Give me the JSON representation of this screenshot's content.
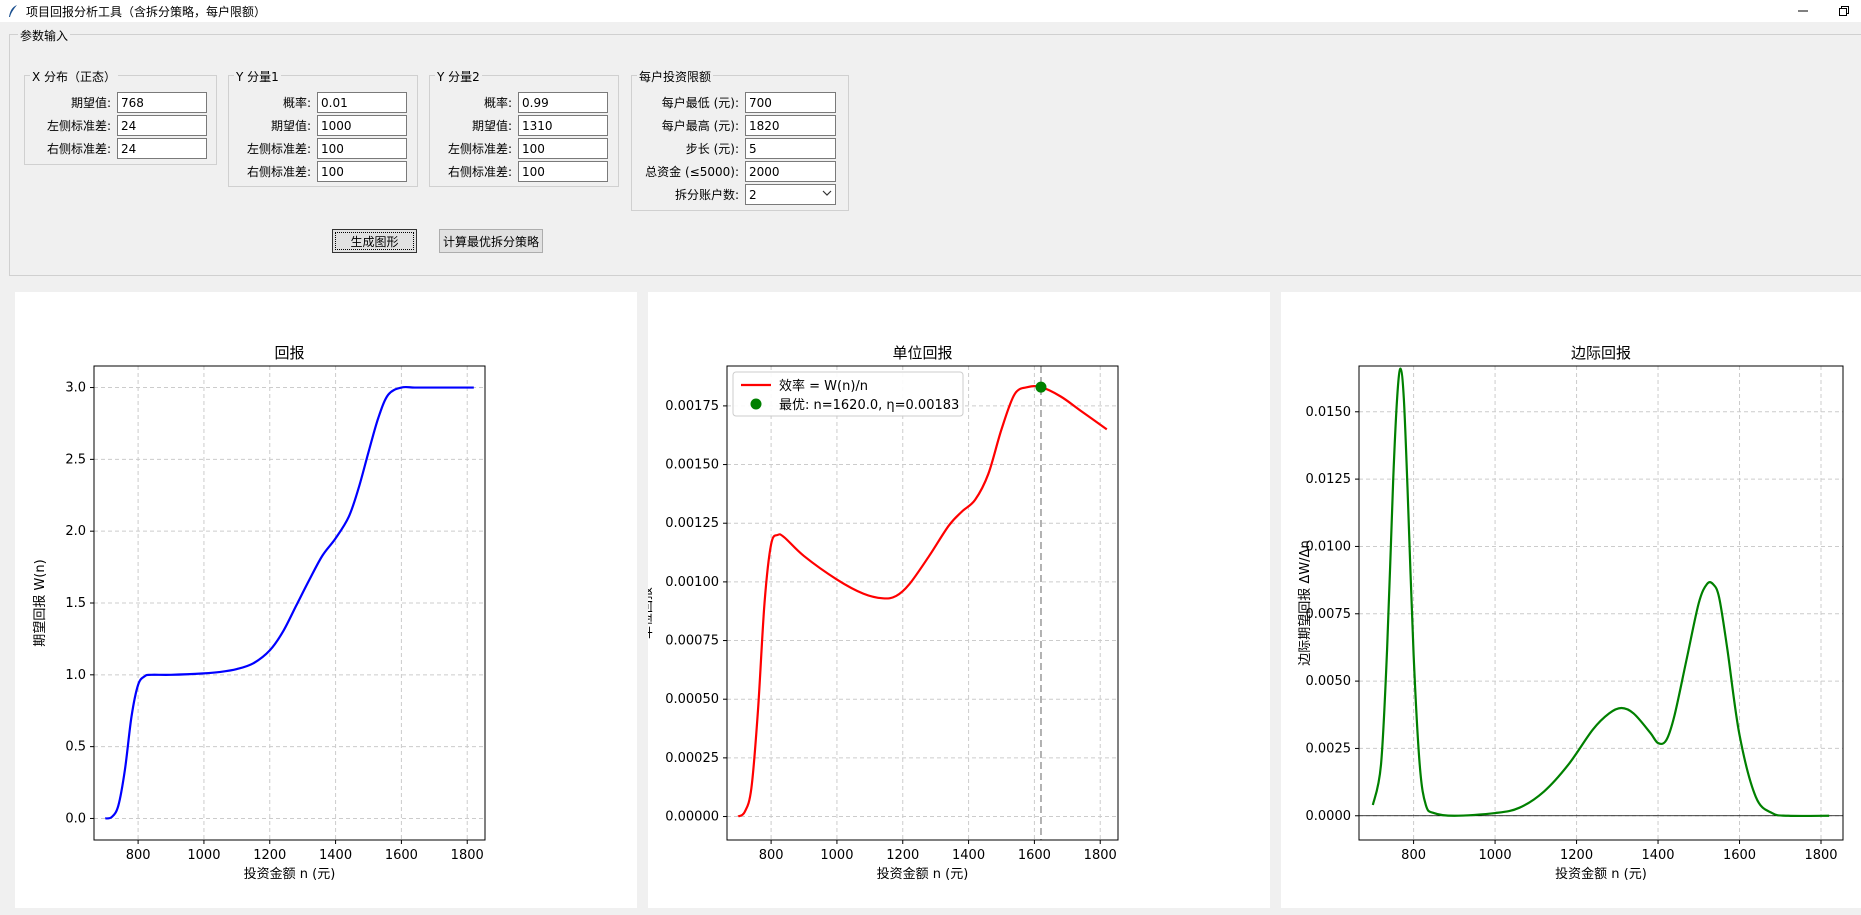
{
  "window": {
    "title": "项目回报分析工具（含拆分策略，每户限额）",
    "minimize_icon": "minimize-icon",
    "restore_icon": "restore-icon"
  },
  "params": {
    "legend": "参数输入",
    "x_dist": {
      "legend": "X 分布（正态）",
      "fields": [
        {
          "label": "期望值:",
          "value": "768"
        },
        {
          "label": "左侧标准差:",
          "value": "24"
        },
        {
          "label": "右侧标准差:",
          "value": "24"
        }
      ]
    },
    "y1": {
      "legend": "Y 分量1",
      "fields": [
        {
          "label": "概率:",
          "value": "0.01"
        },
        {
          "label": "期望值:",
          "value": "1000"
        },
        {
          "label": "左侧标准差:",
          "value": "100"
        },
        {
          "label": "右侧标准差:",
          "value": "100"
        }
      ]
    },
    "y2": {
      "legend": "Y 分量2",
      "fields": [
        {
          "label": "概率:",
          "value": "0.99"
        },
        {
          "label": "期望值:",
          "value": "1310"
        },
        {
          "label": "左侧标准差:",
          "value": "100"
        },
        {
          "label": "右侧标准差:",
          "value": "100"
        }
      ]
    },
    "limits": {
      "legend": "每户投资限额",
      "fields": [
        {
          "label": "每户最低 (元):",
          "value": "700"
        },
        {
          "label": "每户最高 (元):",
          "value": "1820"
        },
        {
          "label": "步长 (元):",
          "value": "5"
        },
        {
          "label": "总资金 (≤5000):",
          "value": "2000"
        }
      ],
      "split": {
        "label": "拆分账户数:",
        "value": "2"
      }
    }
  },
  "buttons": {
    "generate": "生成图形",
    "optimize": "计算最优拆分策略"
  },
  "chart_data": [
    {
      "type": "line",
      "title": "回报",
      "xlabel": "投资金额 n (元)",
      "ylabel": "期望回报 W(n)",
      "xlim": [
        666,
        1854
      ],
      "ylim": [
        -0.15,
        3.15
      ],
      "xticks": [
        800,
        1000,
        1200,
        1400,
        1600,
        1800
      ],
      "yticks": [
        0.0,
        0.5,
        1.0,
        1.5,
        2.0,
        2.5,
        3.0
      ],
      "ytick_labels": [
        "0.0",
        "0.5",
        "1.0",
        "1.5",
        "2.0",
        "2.5",
        "3.0"
      ],
      "grid": true,
      "color": "#0000ff",
      "series": [
        {
          "x": [
            700,
            720,
            740,
            760,
            780,
            800,
            820,
            840,
            900,
            1000,
            1050,
            1100,
            1150,
            1200,
            1240,
            1280,
            1320,
            1360,
            1400,
            1440,
            1470,
            1500,
            1530,
            1560,
            1600,
            1640,
            1700,
            1820
          ],
          "values": [
            0.0,
            0.01,
            0.09,
            0.34,
            0.71,
            0.93,
            0.99,
            1.0,
            1.0,
            1.01,
            1.02,
            1.04,
            1.08,
            1.17,
            1.3,
            1.48,
            1.66,
            1.83,
            1.95,
            2.1,
            2.3,
            2.55,
            2.79,
            2.95,
            3.0,
            3.0,
            3.0,
            3.0
          ]
        }
      ]
    },
    {
      "type": "line",
      "title": "单位回报",
      "xlabel": "投资金额 n (元)",
      "ylabel": "单位回报",
      "xlim": [
        666,
        1854
      ],
      "ylim": [
        -0.0001,
        0.00192
      ],
      "xticks": [
        800,
        1000,
        1200,
        1400,
        1600,
        1800
      ],
      "yticks": [
        0,
        0.00025,
        0.0005,
        0.00075,
        0.001,
        0.00125,
        0.0015,
        0.00175
      ],
      "ytick_labels": [
        "0.00000",
        "0.00025",
        "0.00050",
        "0.00075",
        "0.00100",
        "0.00125",
        "0.00150",
        "0.00175"
      ],
      "grid": true,
      "color": "#ff0000",
      "legend_position": "top-left",
      "series": [
        {
          "name": "效率 = W(n)/n",
          "x": [
            700,
            720,
            740,
            760,
            780,
            800,
            820,
            840,
            900,
            1000,
            1080,
            1140,
            1180,
            1220,
            1280,
            1340,
            1380,
            1420,
            1460,
            1500,
            1540,
            1580,
            1620,
            1680,
            1740,
            1820
          ],
          "values": [
            0.0,
            2e-05,
            0.00012,
            0.00045,
            0.00091,
            0.00116,
            0.0012,
            0.00119,
            0.00111,
            0.00101,
            0.00095,
            0.00093,
            0.00094,
            0.00099,
            0.00111,
            0.00124,
            0.0013,
            0.00135,
            0.00146,
            0.00165,
            0.0018,
            0.00183,
            0.00183,
            0.00179,
            0.00173,
            0.00165
          ]
        }
      ],
      "marker": {
        "name": "最优: n=1620.0, η=0.00183",
        "x": 1620,
        "y": 0.00183,
        "color": "#008000"
      },
      "vline_x": 1620
    },
    {
      "type": "line",
      "title": "边际回报",
      "xlabel": "投资金额 n (元)",
      "ylabel": "边际期望回报 ΔW/Δn",
      "xlim": [
        666,
        1854
      ],
      "ylim": [
        -0.0009,
        0.0167
      ],
      "xticks": [
        800,
        1000,
        1200,
        1400,
        1600,
        1800
      ],
      "yticks": [
        0,
        0.0025,
        0.005,
        0.0075,
        0.01,
        0.0125,
        0.015
      ],
      "ytick_labels": [
        "0.0000",
        "0.0025",
        "0.0050",
        "0.0075",
        "0.0100",
        "0.0125",
        "0.0150"
      ],
      "grid": true,
      "color": "#008000",
      "hline_y": 0,
      "series": [
        {
          "x": [
            700,
            720,
            735,
            750,
            760,
            768,
            776,
            785,
            800,
            815,
            830,
            850,
            900,
            1000,
            1060,
            1120,
            1180,
            1240,
            1280,
            1310,
            1340,
            1380,
            1400,
            1420,
            1440,
            1470,
            1500,
            1520,
            1535,
            1550,
            1570,
            1600,
            1640,
            1680,
            1720,
            1820
          ],
          "values": [
            0.0004,
            0.0019,
            0.0062,
            0.0125,
            0.0156,
            0.0166,
            0.0155,
            0.0122,
            0.006,
            0.0019,
            0.0004,
            0.0001,
            0.0,
            0.0001,
            0.0003,
            0.0009,
            0.0019,
            0.0032,
            0.0038,
            0.004,
            0.0038,
            0.0031,
            0.0027,
            0.0028,
            0.0037,
            0.0058,
            0.0079,
            0.0086,
            0.0086,
            0.0081,
            0.0062,
            0.003,
            0.0007,
            0.0001,
            0.0,
            0.0
          ]
        }
      ]
    }
  ]
}
